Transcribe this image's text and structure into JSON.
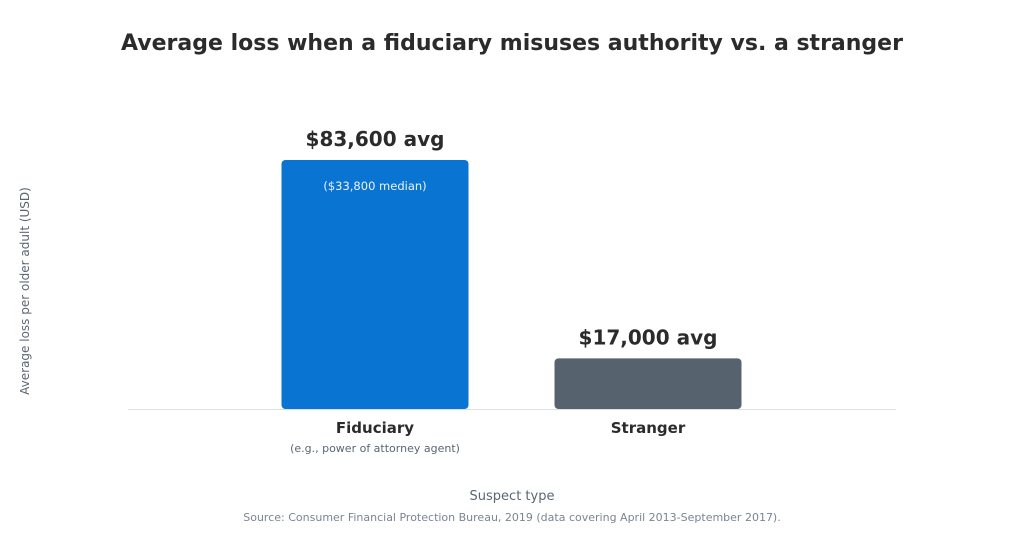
{
  "chart_data": {
    "type": "bar",
    "title": "Average loss when a fiduciary misuses authority vs. a stranger",
    "xlabel": "Suspect type",
    "ylabel": "Average loss per older adult (USD)",
    "ylim": [
      0,
      95000
    ],
    "grid": false,
    "legend": "none",
    "categories": [
      "Fiduciary",
      "Stranger"
    ],
    "category_subtitles": [
      "(e.g., power of attorney agent)",
      ""
    ],
    "values": [
      83600,
      17000
    ],
    "value_labels": [
      "$83,600 avg",
      "$17,000 avg"
    ],
    "inner_labels": [
      "($33,800 median)",
      ""
    ],
    "colors": [
      "#0a74d2",
      "#56636f"
    ],
    "source": "Source: Consumer Financial Protection Bureau, 2019 (data covering April 2013-September 2017)."
  }
}
